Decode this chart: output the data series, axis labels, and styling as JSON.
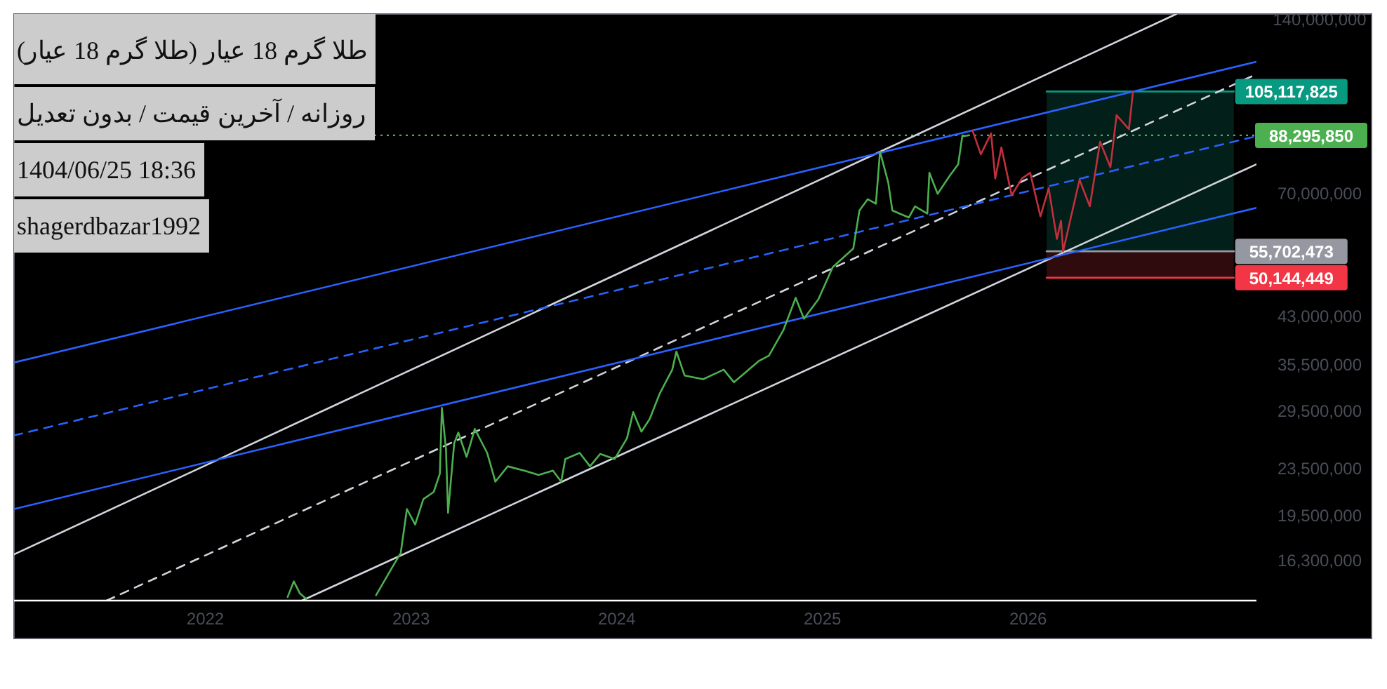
{
  "chart_data": {
    "type": "line",
    "title": "(طلا گرم 18 عیار (طلا گرم 18 عیار",
    "subtitle": "روزانه / آخرین قیمت / بدون تعدیل",
    "annotations": [
      "1404/06/25 18:36",
      "shagerdbazar1992"
    ],
    "log": "y",
    "xlim": [
      2021.07,
      2027.11
    ],
    "ylim": [
      13900000,
      143000000
    ],
    "xticks": [
      2022,
      2023,
      2024,
      2025,
      2026
    ],
    "yticks": [
      {
        "value": 16300000,
        "label": "16,300,000"
      },
      {
        "value": 19500000,
        "label": "19,500,000"
      },
      {
        "value": 23500000,
        "label": "23,500,000"
      },
      {
        "value": 29500000,
        "label": "29,500,000"
      },
      {
        "value": 35500000,
        "label": "35,500,000"
      },
      {
        "value": 43000000,
        "label": "43,000,000"
      },
      {
        "value": 70000000,
        "label": "70,000,000"
      },
      {
        "value": 140000000,
        "label": "140,000,000"
      }
    ],
    "ref_lines": [
      {
        "axis": "y",
        "value": 88295850,
        "label": "88,295,850",
        "color": "#4caf50",
        "line_style": "dotted"
      }
    ],
    "series": [
      {
        "color": "#089981",
        "x": [
          2026.09,
          2027.0
        ],
        "values": [
          105117825,
          105117825
        ],
        "value_labels": [
          null,
          "105,117,825"
        ],
        "lower": [
          55702473,
          55702473
        ],
        "upper": [
          105117825,
          105117825
        ]
      },
      {
        "color": "#f23645",
        "x": [
          2026.09,
          2027.0
        ],
        "values": [
          50144449,
          50144449
        ],
        "value_labels": [
          null,
          "50,144,449"
        ],
        "lower": [
          50144449,
          50144449
        ],
        "upper": [
          55702473,
          55702473
        ]
      },
      {
        "color": "#9598a1",
        "x": [
          2026.09,
          2027.0
        ],
        "values": [
          55702473,
          55702473
        ],
        "value_labels": [
          null,
          "55,702,473"
        ]
      },
      {
        "color": "#d1d4dc",
        "line_style": "solid",
        "x": [
          2021.07,
          2026.72
        ],
        "values": [
          16700000,
          143000000
        ]
      },
      {
        "color": "#d1d4dc",
        "line_style": "solid",
        "x": [
          2022.47,
          2027.11
        ],
        "values": [
          13900000,
          78700000
        ]
      },
      {
        "color": "#d1d4dc",
        "line_style": "dashed",
        "x": [
          2021.52,
          2027.11
        ],
        "values": [
          13900000,
          112600000
        ]
      },
      {
        "color": "#2962ff",
        "line_style": "solid",
        "x": [
          2021.07,
          2027.11
        ],
        "values": [
          35800000,
          118300000
        ]
      },
      {
        "color": "#2962ff",
        "line_style": "dashed",
        "x": [
          2021.07,
          2027.11
        ],
        "values": [
          26800000,
          88000000
        ]
      },
      {
        "color": "#2962ff",
        "line_style": "solid",
        "x": [
          2021.07,
          2027.11
        ],
        "values": [
          20000000,
          66200000
        ]
      },
      {
        "color": "#4caf50",
        "x": [
          2022.4,
          2022.43,
          2022.46,
          2022.49
        ],
        "values": [
          14100000,
          15000000,
          14300000,
          14000000
        ]
      },
      {
        "color": "#4caf50",
        "x": [
          2022.83,
          2022.91,
          2022.95,
          2022.98,
          2023.02,
          2023.06,
          2023.11,
          2023.14,
          2023.15,
          2023.17,
          2023.18,
          2023.21,
          2023.23,
          2023.27,
          2023.31,
          2023.37,
          2023.41,
          2023.47,
          2023.55,
          2023.62,
          2023.69,
          2023.73,
          2023.75,
          2023.82,
          2023.87,
          2023.92,
          2023.99,
          2024.05,
          2024.08,
          2024.12,
          2024.16,
          2024.21,
          2024.27,
          2024.29,
          2024.33,
          2024.42,
          2024.52,
          2024.57,
          2024.69,
          2024.74,
          2024.81,
          2024.87,
          2024.91,
          2024.98,
          2025.05,
          2025.15,
          2025.18,
          2025.22,
          2025.26,
          2025.28,
          2025.32,
          2025.34,
          2025.42,
          2025.45,
          2025.51,
          2025.52,
          2025.56,
          2025.62,
          2025.66,
          2025.68,
          2025.71
        ],
        "values": [
          14200000,
          15900000,
          16800000,
          20000000,
          18800000,
          20800000,
          21400000,
          23000000,
          29900000,
          25300000,
          19700000,
          26000000,
          27100000,
          24600000,
          27500000,
          25000000,
          22300000,
          23700000,
          23300000,
          22900000,
          23300000,
          22300000,
          24400000,
          25000000,
          23700000,
          24900000,
          24400000,
          26500000,
          29400000,
          27200000,
          28600000,
          31700000,
          34800000,
          37400000,
          34000000,
          33500000,
          34800000,
          33100000,
          36000000,
          36800000,
          40700000,
          46300000,
          42600000,
          46000000,
          52300000,
          56300000,
          65500000,
          68500000,
          67300000,
          82800000,
          73200000,
          65500000,
          63700000,
          66600000,
          64700000,
          76100000,
          70000000,
          75300000,
          78700000,
          88000000,
          88295850
        ]
      },
      {
        "color": "#c2303c",
        "x": [
          2025.73,
          2025.77,
          2025.82,
          2025.84,
          2025.87,
          2025.92,
          2025.97,
          2026.01,
          2026.06,
          2026.1,
          2026.14,
          2026.16,
          2026.17,
          2026.25,
          2026.3,
          2026.35,
          2026.4,
          2026.43,
          2026.49,
          2026.51
        ],
        "values": [
          90000000,
          81900000,
          89000000,
          74400000,
          84200000,
          69600000,
          74400000,
          76100000,
          64000000,
          71600000,
          58500000,
          62900000,
          55700000,
          74000000,
          66600000,
          86100000,
          77800000,
          95700000,
          90500000,
          105100000
        ]
      }
    ]
  }
}
